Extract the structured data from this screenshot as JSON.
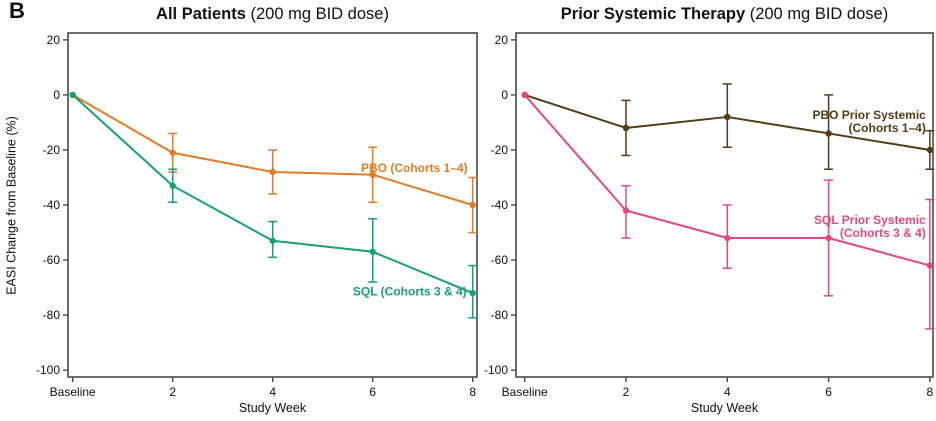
{
  "panel_label": "B",
  "colors": {
    "axis": "#3e3e3e",
    "text": "#111111",
    "pbo_all": "#e07d26",
    "sql_all": "#17a076",
    "pbo_prior": "#533b15",
    "sql_prior": "#e5487e"
  },
  "chart_data": [
    {
      "type": "line",
      "title_bold": "All Patients",
      "title_rest": " (200 mg BID dose)",
      "ylabel": "EASI Change from Baseline (%)",
      "xlabel": "Study Week",
      "categories": [
        "Baseline",
        "2",
        "4",
        "6",
        "8"
      ],
      "yticks": [
        20,
        0,
        -20,
        -40,
        -60,
        -80,
        -100
      ],
      "ylim": [
        -102.5,
        22.5
      ],
      "grid": false,
      "legend_position": "in-plot-labels",
      "marker": "circle",
      "error_bars": true,
      "series": [
        {
          "name": "PBO (Cohorts 1–4)",
          "color": "#e07d26",
          "values": [
            0,
            -21,
            -28,
            -29,
            -40
          ],
          "err_high": [
            null,
            -14,
            -20,
            -19,
            -30
          ],
          "err_low": [
            null,
            -28,
            -36,
            -39,
            -50
          ],
          "label_lines": [
            "PBO (Cohorts 1–4)"
          ],
          "label_x": 3.95,
          "label_y": -26.5,
          "label_align": "end"
        },
        {
          "name": "SQL (Cohorts 3 & 4)",
          "color": "#17a076",
          "values": [
            0,
            -33,
            -53,
            -57,
            -72
          ],
          "err_high": [
            null,
            -27,
            -46,
            -45,
            -62
          ],
          "err_low": [
            null,
            -39,
            -59,
            -68,
            -81
          ],
          "label_lines": [
            "SQL (Cohorts 3 & 4)"
          ],
          "label_x": 3.94,
          "label_y": -71.5,
          "label_align": "end"
        }
      ]
    },
    {
      "type": "line",
      "title_bold": "Prior Systemic Therapy",
      "title_rest": " (200 mg BID dose)",
      "ylabel": "",
      "xlabel": "Study Week",
      "categories": [
        "Baseline",
        "2",
        "4",
        "6",
        "8"
      ],
      "yticks": [
        20,
        0,
        -20,
        -40,
        -60,
        -80,
        -100
      ],
      "ylim": [
        -102.5,
        22.5
      ],
      "grid": false,
      "legend_position": "in-plot-labels",
      "marker": "circle",
      "error_bars": true,
      "series": [
        {
          "name": "PBO Prior Systemic (Cohorts 1–4)",
          "color": "#533b15",
          "values": [
            0,
            -12,
            -8,
            -14,
            -20
          ],
          "err_high": [
            null,
            -2,
            4,
            0,
            -13
          ],
          "err_low": [
            null,
            -22,
            -19,
            -27,
            -27
          ],
          "label_lines": [
            "PBO Prior Systemic",
            "(Cohorts 1–4)"
          ],
          "label_x": 3.96,
          "label_y": -7.3,
          "label_align": "end"
        },
        {
          "name": "SQL Prior Systemic (Cohorts 3 & 4)",
          "color": "#e5487e",
          "values": [
            0,
            -42,
            -52,
            -52,
            -62
          ],
          "err_high": [
            null,
            -33,
            -40,
            -31,
            -38
          ],
          "err_low": [
            null,
            -52,
            -63,
            -73,
            -85
          ],
          "label_lines": [
            "SQL Prior Systemic",
            "(Cohorts 3 & 4)"
          ],
          "label_x": 3.96,
          "label_y": -45.4,
          "label_align": "end"
        }
      ]
    }
  ]
}
